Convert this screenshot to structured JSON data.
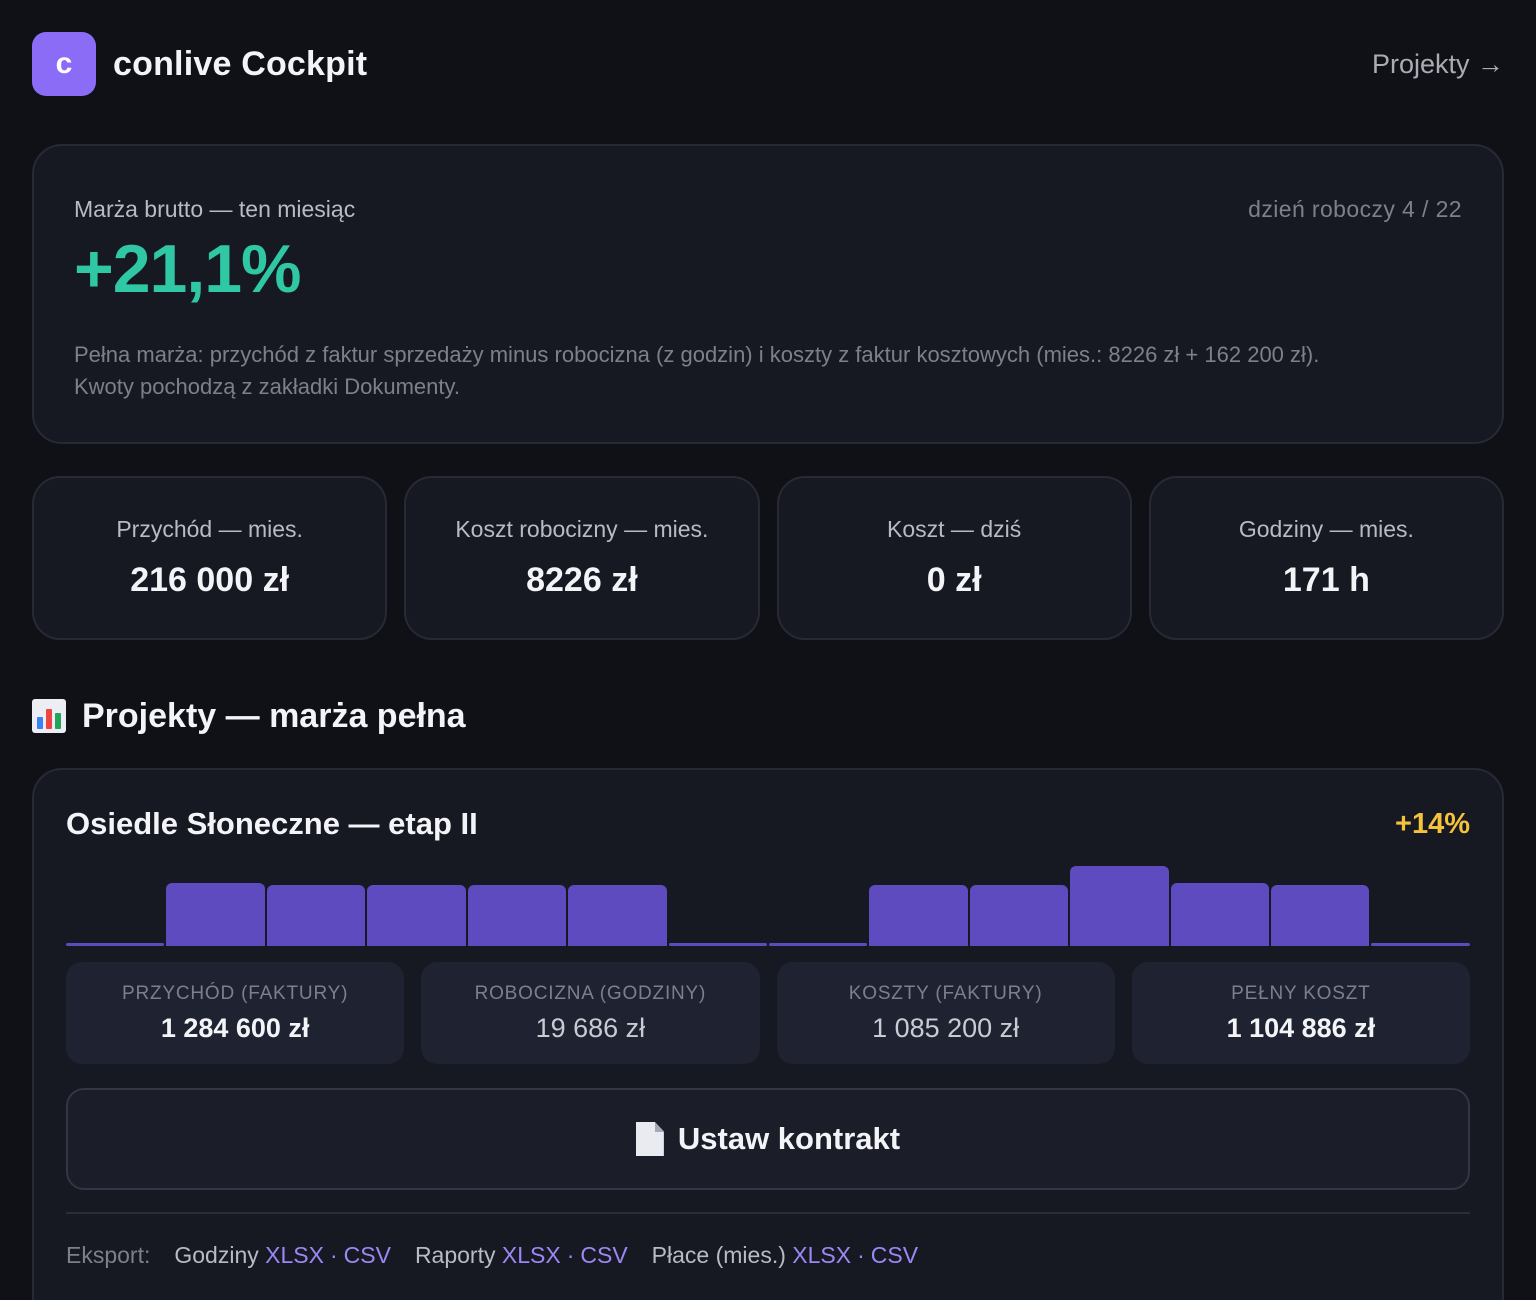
{
  "header": {
    "logo_letter": "c",
    "title": "conlive Cockpit",
    "nav_link": "Projekty →"
  },
  "hero": {
    "label": "Marża brutto — ten miesiąc",
    "workday": "dzień roboczy 4 / 22",
    "value": "+21,1%",
    "description": "Pełna marża: przychód z faktur sprzedaży minus robocizna (z godzin) i koszty z faktur kosztowych (mies.: 8226 zł + 162 200 zł). Kwoty pochodzą z zakładki Dokumenty."
  },
  "kpis": [
    {
      "label": "Przychód — mies.",
      "value": "216 000 zł"
    },
    {
      "label": "Koszt robocizny — mies.",
      "value": "8226 zł"
    },
    {
      "label": "Koszt — dziś",
      "value": "0 zł"
    },
    {
      "label": "Godziny — mies.",
      "value": "171 h"
    }
  ],
  "section": {
    "icon": "bar-chart-icon",
    "title": "Projekty — marża pełna"
  },
  "project": {
    "name": "Osiedle Słoneczne — etap II",
    "delta": "+14%",
    "accent_color": "#5d4bbf",
    "bar_levels": [
      0.04,
      0.79,
      0.76,
      0.76,
      0.76,
      0.76,
      0.04,
      0.04,
      0.76,
      0.76,
      1.0,
      0.79,
      0.76,
      0.04
    ],
    "stats": [
      {
        "label": "PRZYCHÓD (FAKTURY)",
        "value": "1 284 600 zł"
      },
      {
        "label": "ROBOCIZNA (GODZINY)",
        "value": "19 686 zł"
      },
      {
        "label": "KOSZTY (FAKTURY)",
        "value": "1 085 200 zł"
      },
      {
        "label": "PEŁNY KOSZT",
        "value": "1 104 886 zł"
      }
    ],
    "contract_button": "Ustaw kontrakt",
    "contract_icon": "document-icon",
    "export": {
      "label": "Eksport:",
      "groups": [
        {
          "name": "Godziny",
          "formats": [
            "XLSX",
            "CSV"
          ]
        },
        {
          "name": "Raporty",
          "formats": [
            "XLSX",
            "CSV"
          ]
        },
        {
          "name": "Płace (mies.)",
          "formats": [
            "XLSX",
            "CSV"
          ]
        }
      ],
      "separator": "·"
    }
  }
}
